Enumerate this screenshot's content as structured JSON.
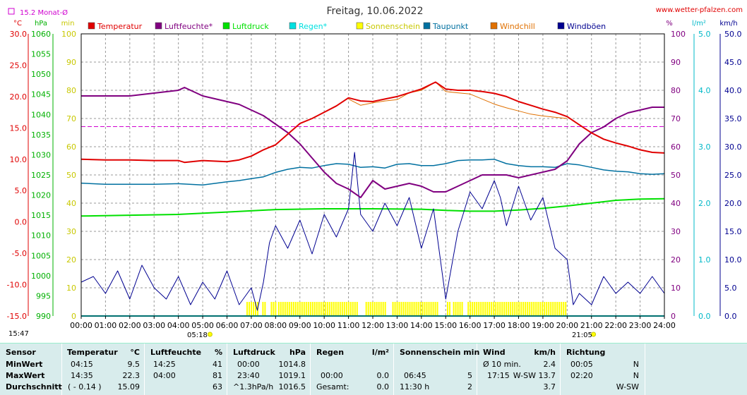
{
  "header": {
    "title": "Freitag, 10.06.2022",
    "site": "www.wetter-pfalzen.com",
    "monthly_avg": "15.2 Monat-Ø"
  },
  "colors": {
    "temperature": "#e00000",
    "humidity": "#800080",
    "pressure": "#00e000",
    "rain": "#00e0e0",
    "sunshine": "#ffff00",
    "dewpoint": "#0070a0",
    "windchill": "#e07000",
    "gusts": "#000090",
    "monthavg": "#d000d0"
  },
  "axis_units": {
    "temp": "°C",
    "pressure": "hPa",
    "sun": "min",
    "humidity": "%",
    "rain": "l/m²",
    "wind": "km/h"
  },
  "below_axis": {
    "time_now": "15:47",
    "sunrise": "05:18",
    "sunset": "21:05"
  },
  "chart_data": {
    "type": "line",
    "title": "Freitag, 10.06.2022",
    "x_ticks": [
      "00:00",
      "01:00",
      "02:00",
      "03:00",
      "04:00",
      "05:00",
      "06:00",
      "07:00",
      "08:00",
      "09:00",
      "10:00",
      "11:00",
      "12:00",
      "13:00",
      "14:00",
      "15:00",
      "16:00",
      "17:00",
      "18:00",
      "19:00",
      "20:00",
      "21:00",
      "22:00",
      "23:00",
      "24:00"
    ],
    "x_unit": "hours",
    "xlim": [
      0,
      24
    ],
    "legend": [
      "Temperatur",
      "Luftfeuchte*",
      "Luftdruck",
      "Regen*",
      "Sonnenschein",
      "Taupunkt",
      "Windchill",
      "Windböen"
    ],
    "axes": {
      "temp": {
        "label": "°C",
        "ylim": [
          -15,
          30
        ],
        "ticks": [
          "30.0",
          "25.0",
          "20.0",
          "15.0",
          "10.0",
          "5.0",
          "0.0",
          "-5.0",
          "-10.0",
          "-15.0"
        ]
      },
      "pressure": {
        "label": "hPa",
        "ylim": [
          990,
          1060
        ],
        "ticks": [
          "1060",
          "1055",
          "1050",
          "1045",
          "1040",
          "1035",
          "1030",
          "1025",
          "1020",
          "1015",
          "1010",
          "1005",
          "1000",
          "995",
          "990"
        ]
      },
      "sun": {
        "label": "min",
        "ylim": [
          0,
          100
        ],
        "ticks": [
          "100",
          "90",
          "80",
          "70",
          "60",
          "50",
          "40",
          "30",
          "20",
          "10",
          "0"
        ]
      },
      "humidity": {
        "label": "%",
        "ylim": [
          0,
          100
        ],
        "ticks": [
          "100",
          "90",
          "80",
          "70",
          "60",
          "50",
          "40",
          "30",
          "20",
          "10",
          "0"
        ]
      },
      "rain": {
        "label": "l/m²",
        "ylim": [
          0,
          5
        ],
        "ticks": [
          "5.0",
          "4.0",
          "3.0",
          "2.0",
          "1.0",
          "0.0"
        ]
      },
      "wind": {
        "label": "km/h",
        "ylim": [
          0,
          50
        ],
        "ticks": [
          "50.0",
          "45.0",
          "40.0",
          "35.0",
          "30.0",
          "25.0",
          "20.0",
          "15.0",
          "10.0",
          "5.0",
          "0.0"
        ]
      }
    },
    "month_avg_temp": 15.2,
    "series": [
      {
        "name": "Temperatur",
        "axis": "temp",
        "x": [
          0,
          1,
          2,
          3,
          4,
          4.25,
          5,
          6,
          6.5,
          7,
          7.5,
          8,
          8.5,
          9,
          9.5,
          10,
          10.5,
          11,
          11.5,
          12,
          12.5,
          13,
          13.5,
          14,
          14.583,
          15,
          15.5,
          16,
          16.5,
          17,
          17.5,
          18,
          18.5,
          19,
          19.5,
          20,
          20.5,
          21,
          21.5,
          22,
          22.5,
          23,
          23.5,
          24
        ],
        "y": [
          10.0,
          9.9,
          9.9,
          9.8,
          9.8,
          9.5,
          9.8,
          9.6,
          9.9,
          10.5,
          11.5,
          12.3,
          14.0,
          15.7,
          16.5,
          17.5,
          18.5,
          19.8,
          19.3,
          19.2,
          19.6,
          20.0,
          20.6,
          21.2,
          22.3,
          21.2,
          21.0,
          21.0,
          20.8,
          20.5,
          20.0,
          19.2,
          18.6,
          18.0,
          17.5,
          16.8,
          15.5,
          14.2,
          13.2,
          12.6,
          12.1,
          11.5,
          11.1,
          11.0
        ]
      },
      {
        "name": "Luftfeuchte*",
        "axis": "humidity",
        "x": [
          0,
          1,
          2,
          3,
          4,
          4.25,
          4.5,
          5,
          6,
          6.5,
          7,
          7.5,
          8,
          8.5,
          9,
          9.5,
          10,
          10.5,
          11,
          11.5,
          12,
          12.5,
          13,
          13.5,
          14,
          14.5,
          15,
          15.5,
          16,
          16.5,
          17,
          17.5,
          18,
          18.5,
          19,
          19.5,
          20,
          20.5,
          21,
          21.5,
          22,
          22.5,
          23,
          23.5,
          24
        ],
        "y": [
          78,
          78,
          78,
          79,
          80,
          81,
          80,
          78,
          76,
          75,
          73,
          71,
          68,
          65,
          61,
          56,
          51,
          47,
          45,
          42,
          48,
          45,
          46,
          47,
          46,
          44,
          44,
          46,
          48,
          50,
          50,
          50,
          49,
          50,
          51,
          52,
          55,
          61,
          65,
          67,
          70,
          72,
          73,
          74,
          74
        ]
      },
      {
        "name": "Luftdruck",
        "axis": "pressure",
        "x": [
          0,
          2,
          4,
          6,
          8,
          10,
          12,
          14,
          15,
          16,
          17,
          18,
          19,
          20,
          21,
          22,
          23,
          24
        ],
        "y": [
          1014.8,
          1015.0,
          1015.2,
          1015.8,
          1016.4,
          1016.6,
          1016.6,
          1016.5,
          1016.2,
          1016.0,
          1016.0,
          1016.3,
          1016.7,
          1017.3,
          1018.0,
          1018.7,
          1019.0,
          1019.1
        ]
      },
      {
        "name": "Regen*",
        "axis": "rain",
        "x": [
          0,
          24
        ],
        "y": [
          0.0,
          0.0
        ]
      },
      {
        "name": "Sonnenschein",
        "axis": "sun",
        "type": "bar",
        "intervals": [
          [
            6.8,
            7.3
          ],
          [
            7.45,
            7.6
          ],
          [
            7.8,
            8.0
          ],
          [
            8.1,
            11.35
          ],
          [
            11.7,
            12.5
          ],
          [
            12.8,
            14.7
          ],
          [
            15.05,
            15.2
          ],
          [
            15.3,
            15.65
          ],
          [
            15.9,
            19.95
          ]
        ],
        "value": 2
      },
      {
        "name": "Taupunkt",
        "axis": "temp",
        "x": [
          0,
          1,
          2,
          3,
          4,
          5,
          6,
          6.5,
          7,
          7.5,
          8,
          8.5,
          9,
          9.5,
          10,
          10.5,
          11,
          11.5,
          12,
          12.5,
          13,
          13.5,
          14,
          14.5,
          15,
          15.5,
          16,
          16.5,
          17,
          17.5,
          18,
          18.5,
          19,
          19.5,
          20,
          20.5,
          21,
          21.5,
          22,
          22.5,
          23,
          23.5,
          24
        ],
        "y": [
          6.2,
          6.0,
          6.0,
          6.0,
          6.1,
          5.9,
          6.4,
          6.6,
          6.9,
          7.2,
          7.9,
          8.4,
          8.7,
          8.6,
          9.0,
          9.3,
          9.2,
          8.7,
          8.8,
          8.6,
          9.2,
          9.3,
          9.0,
          9.0,
          9.3,
          9.8,
          9.9,
          9.9,
          10.0,
          9.3,
          9.0,
          8.8,
          8.8,
          8.7,
          9.3,
          9.1,
          8.7,
          8.3,
          8.1,
          8.0,
          7.7,
          7.6,
          7.7
        ]
      },
      {
        "name": "Windchill",
        "axis": "temp",
        "x": [
          11,
          11.5,
          12,
          12.5,
          13,
          13.5,
          14,
          14.583,
          15,
          15.5,
          16,
          16.5,
          17,
          17.5,
          18,
          18.5,
          19,
          19.5,
          20
        ],
        "y": [
          19.6,
          18.6,
          19.0,
          19.3,
          19.5,
          20.6,
          21.0,
          22.3,
          20.8,
          20.6,
          20.4,
          19.6,
          18.8,
          18.2,
          17.7,
          17.2,
          16.9,
          16.7,
          16.5
        ]
      },
      {
        "name": "Windböen",
        "axis": "wind",
        "x": [
          0,
          0.5,
          1,
          1.5,
          2,
          2.5,
          3,
          3.5,
          4,
          4.5,
          5,
          5.5,
          6,
          6.5,
          7,
          7.25,
          7.5,
          7.75,
          8,
          8.5,
          9,
          9.5,
          10,
          10.5,
          11,
          11.25,
          11.5,
          12,
          12.5,
          13,
          13.5,
          14,
          14.5,
          15,
          15.5,
          16,
          16.5,
          17,
          17.25,
          17.5,
          18,
          18.5,
          19,
          19.5,
          20,
          20.25,
          20.5,
          21,
          21.5,
          22,
          22.5,
          23,
          23.5,
          24
        ],
        "y": [
          6,
          7,
          4,
          8,
          3,
          9,
          5,
          3,
          7,
          2,
          6,
          3,
          8,
          2,
          5,
          1,
          6,
          13,
          16,
          12,
          17,
          11,
          18,
          14,
          19,
          29,
          18,
          15,
          20,
          16,
          21,
          12,
          19,
          3,
          15,
          22,
          19,
          24,
          21,
          16,
          23,
          17,
          21,
          12,
          10,
          2,
          4,
          2,
          7,
          4,
          6,
          4,
          7,
          4
        ]
      }
    ]
  },
  "stats": {
    "sensor": {
      "header": "Sensor",
      "rows": [
        "MinWert",
        "MaxWert",
        "Durchschnitt"
      ]
    },
    "temperature": {
      "header": "Temperatur",
      "unit": "°C",
      "times": [
        "04:15",
        "14:35",
        "( - 0.14 )"
      ],
      "values": [
        "9.5",
        "22.3",
        "15.09"
      ]
    },
    "humidity": {
      "header": "Luftfeuchte",
      "unit": "%",
      "times": [
        "14:25",
        "04:00",
        ""
      ],
      "values": [
        "41",
        "81",
        "63"
      ]
    },
    "pressure": {
      "header": "Luftdruck",
      "unit": "hPa",
      "times": [
        "00:00",
        "23:40",
        "^1.3hPa/h"
      ],
      "values": [
        "1014.8",
        "1019.1",
        "1016.5"
      ]
    },
    "rain": {
      "header": "Regen",
      "unit": "l/m²",
      "times": [
        "",
        "00:00",
        "Gesamt:"
      ],
      "values": [
        "",
        "0.0",
        "0.0"
      ]
    },
    "sunshine": {
      "header": "Sonnenschein min",
      "times": [
        "",
        "06:45",
        "11:30 h"
      ],
      "values": [
        "",
        "5",
        "2"
      ]
    },
    "wind": {
      "header": "Wind",
      "unit": "km/h",
      "times": [
        "Ø 10 min.",
        "17:15",
        "W-SW 13.7"
      ],
      "values": [
        "2.4",
        "",
        "3.7"
      ]
    },
    "direction": {
      "header": "Richtung",
      "times": [
        "00:05",
        "02:20",
        ""
      ],
      "values": [
        "N",
        "N",
        "W-SW"
      ]
    }
  }
}
